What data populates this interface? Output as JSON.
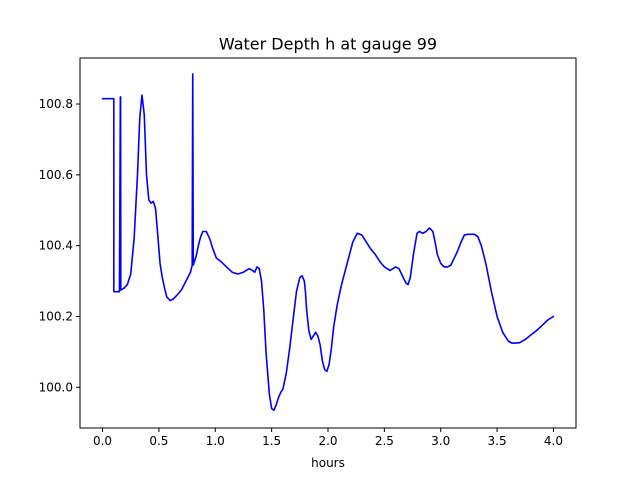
{
  "chart_data": {
    "type": "line",
    "title": "Water Depth h at gauge 99",
    "xlabel": "hours",
    "ylabel": "",
    "xlim": [
      -0.2,
      4.2
    ],
    "ylim": [
      99.885,
      100.93
    ],
    "xticks": [
      0.0,
      0.5,
      1.0,
      1.5,
      2.0,
      2.5,
      3.0,
      3.5,
      4.0
    ],
    "xtick_labels": [
      "0.0",
      "0.5",
      "1.0",
      "1.5",
      "2.0",
      "2.5",
      "3.0",
      "3.5",
      "4.0"
    ],
    "yticks": [
      100.0,
      100.2,
      100.4,
      100.6,
      100.8
    ],
    "ytick_labels": [
      "100.0",
      "100.2",
      "100.4",
      "100.6",
      "100.8"
    ],
    "grid": false,
    "series": [
      {
        "color": "#0000ff",
        "x": [
          0.0,
          0.1,
          0.1,
          0.13,
          0.15,
          0.158,
          0.16,
          0.162,
          0.19,
          0.22,
          0.25,
          0.28,
          0.31,
          0.33,
          0.35,
          0.37,
          0.39,
          0.41,
          0.43,
          0.45,
          0.47,
          0.49,
          0.51,
          0.53,
          0.55,
          0.57,
          0.6,
          0.63,
          0.66,
          0.7,
          0.74,
          0.78,
          0.795,
          0.8,
          0.805,
          0.81,
          0.83,
          0.85,
          0.87,
          0.89,
          0.92,
          0.95,
          0.98,
          1.01,
          1.05,
          1.1,
          1.15,
          1.2,
          1.25,
          1.3,
          1.33,
          1.35,
          1.37,
          1.39,
          1.41,
          1.43,
          1.45,
          1.48,
          1.5,
          1.52,
          1.54,
          1.56,
          1.58,
          1.6,
          1.63,
          1.66,
          1.69,
          1.72,
          1.75,
          1.77,
          1.79,
          1.8,
          1.81,
          1.83,
          1.85,
          1.87,
          1.89,
          1.91,
          1.93,
          1.95,
          1.97,
          1.99,
          2.01,
          2.03,
          2.05,
          2.08,
          2.12,
          2.17,
          2.22,
          2.26,
          2.3,
          2.34,
          2.38,
          2.42,
          2.46,
          2.5,
          2.55,
          2.6,
          2.63,
          2.66,
          2.69,
          2.71,
          2.73,
          2.76,
          2.79,
          2.81,
          2.84,
          2.87,
          2.9,
          2.93,
          2.95,
          2.97,
          3.0,
          3.03,
          3.06,
          3.09,
          3.12,
          3.15,
          3.18,
          3.21,
          3.24,
          3.27,
          3.3,
          3.33,
          3.36,
          3.4,
          3.45,
          3.5,
          3.55,
          3.6,
          3.63,
          3.66,
          3.7,
          3.75,
          3.8,
          3.85,
          3.9,
          3.95,
          4.0
        ],
        "y": [
          100.815,
          100.815,
          100.27,
          100.27,
          100.27,
          100.82,
          100.82,
          100.275,
          100.28,
          100.29,
          100.32,
          100.42,
          100.6,
          100.76,
          100.825,
          100.77,
          100.6,
          100.53,
          100.52,
          100.525,
          100.505,
          100.43,
          100.35,
          100.31,
          100.28,
          100.255,
          100.245,
          100.25,
          100.26,
          100.275,
          100.3,
          100.325,
          100.345,
          100.885,
          100.345,
          100.35,
          100.37,
          100.4,
          100.425,
          100.44,
          100.44,
          100.42,
          100.39,
          100.365,
          100.355,
          100.34,
          100.325,
          100.32,
          100.325,
          100.335,
          100.33,
          100.325,
          100.34,
          100.335,
          100.3,
          100.22,
          100.1,
          99.98,
          99.94,
          99.935,
          99.95,
          99.97,
          99.985,
          99.995,
          100.04,
          100.11,
          100.19,
          100.27,
          100.31,
          100.315,
          100.3,
          100.27,
          100.22,
          100.16,
          100.135,
          100.145,
          100.155,
          100.145,
          100.12,
          100.075,
          100.05,
          100.045,
          100.065,
          100.11,
          100.17,
          100.23,
          100.29,
          100.35,
          100.41,
          100.435,
          100.43,
          100.41,
          100.39,
          100.375,
          100.355,
          100.34,
          100.33,
          100.34,
          100.335,
          100.315,
          100.295,
          100.29,
          100.31,
          100.38,
          100.435,
          100.44,
          100.435,
          100.44,
          100.45,
          100.44,
          100.41,
          100.375,
          100.35,
          100.34,
          100.34,
          100.345,
          100.365,
          100.385,
          100.41,
          100.43,
          100.432,
          100.432,
          100.432,
          100.425,
          100.4,
          100.35,
          100.27,
          100.2,
          100.155,
          100.13,
          100.125,
          100.125,
          100.126,
          100.135,
          100.148,
          100.16,
          100.175,
          100.19,
          100.2
        ]
      }
    ]
  }
}
